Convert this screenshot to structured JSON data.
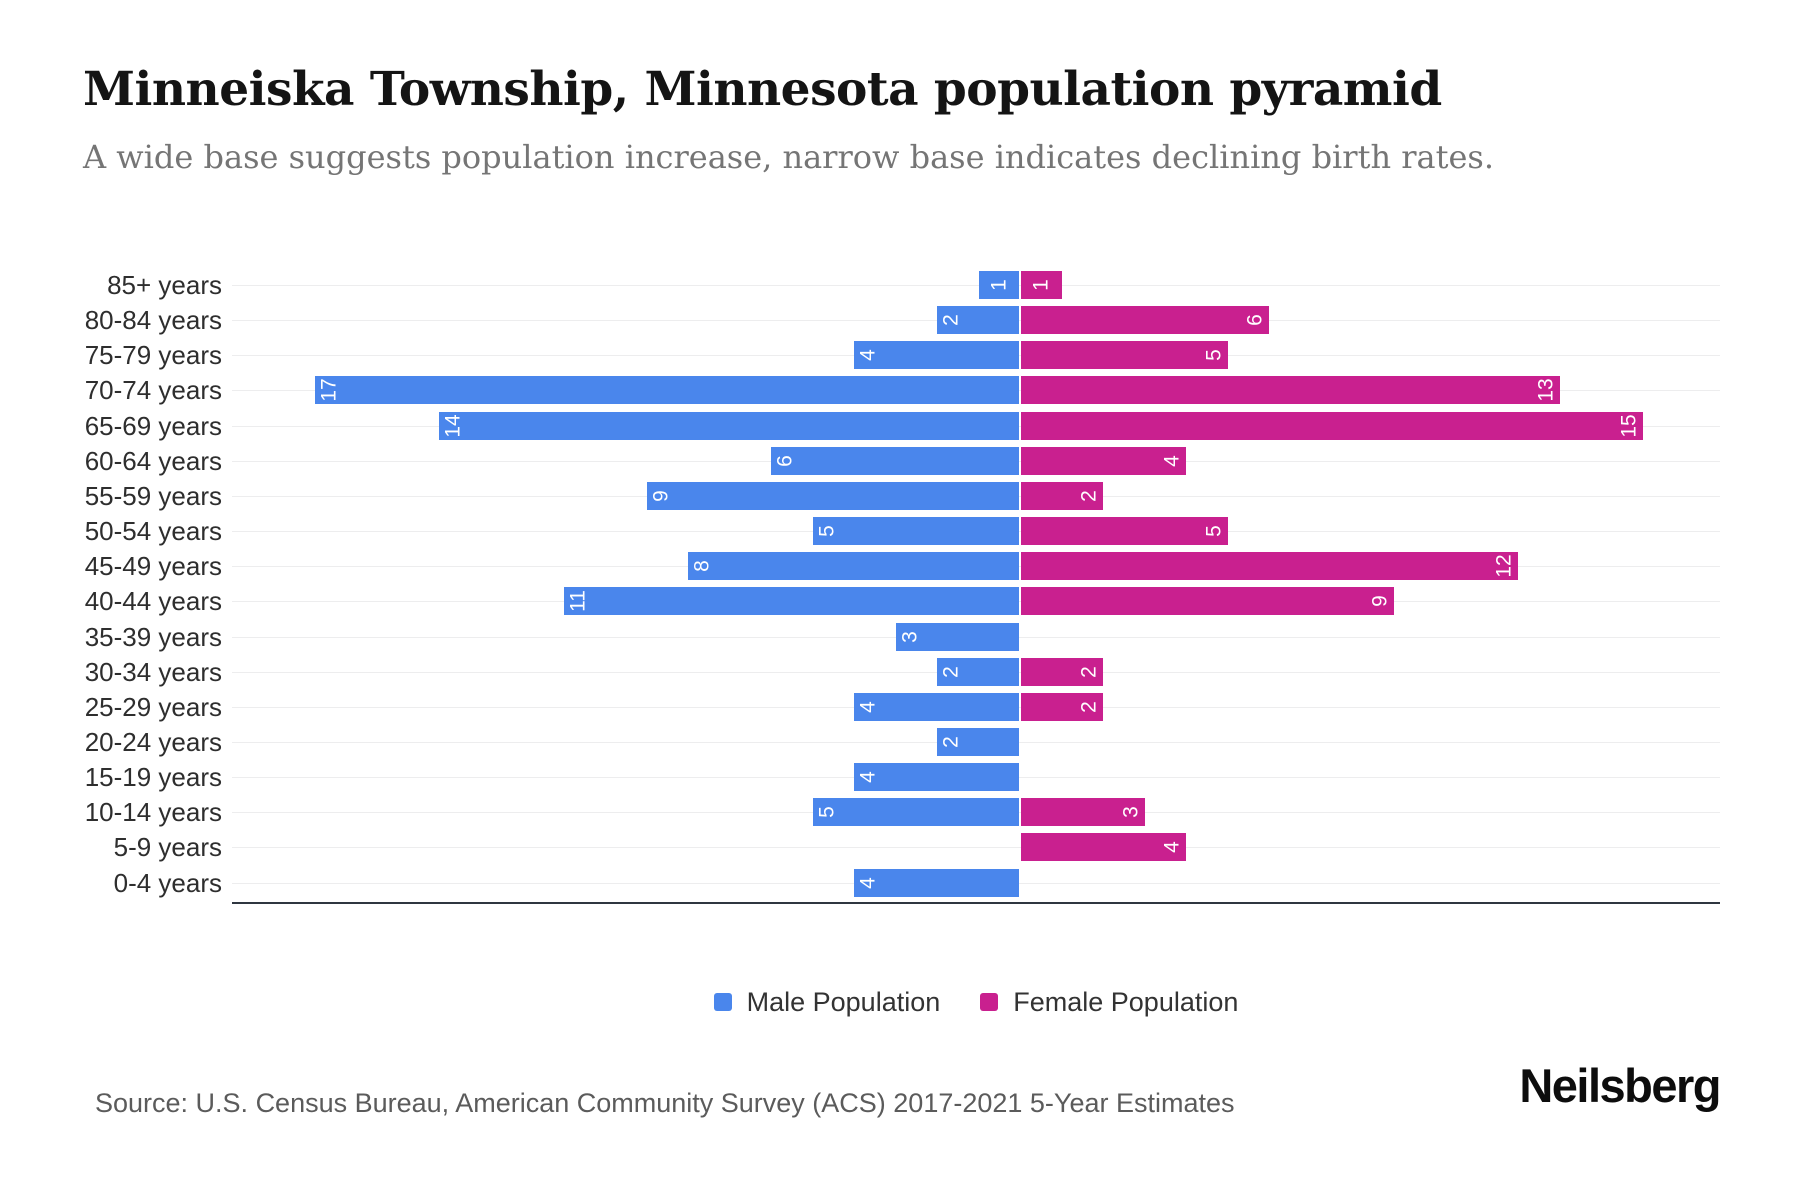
{
  "header": {
    "title": "Minneiska Township, Minnesota population pyramid",
    "subtitle": "A wide base suggests population increase, narrow base indicates declining birth rates."
  },
  "chart_data": {
    "type": "bar",
    "variant": "population-pyramid",
    "title": "Minneiska Township, Minnesota population pyramid",
    "categories": [
      "85+ years",
      "80-84 years",
      "75-79 years",
      "70-74 years",
      "65-69 years",
      "60-64 years",
      "55-59 years",
      "50-54 years",
      "45-49 years",
      "40-44 years",
      "35-39 years",
      "30-34 years",
      "25-29 years",
      "20-24 years",
      "15-19 years",
      "10-14 years",
      "5-9 years",
      "0-4 years"
    ],
    "series": [
      {
        "name": "Male Population",
        "side": "left",
        "color": "#4a86ec",
        "values": [
          1,
          2,
          4,
          17,
          14,
          6,
          9,
          5,
          8,
          11,
          3,
          2,
          4,
          2,
          4,
          5,
          0,
          4
        ]
      },
      {
        "name": "Female Population",
        "side": "right",
        "color": "#c9208f",
        "values": [
          1,
          6,
          5,
          13,
          15,
          4,
          2,
          5,
          12,
          9,
          0,
          2,
          2,
          0,
          0,
          3,
          4,
          0
        ]
      }
    ],
    "xlim": [
      -19,
      17
    ],
    "grid": true,
    "gridline_color": "#ededee",
    "axis_line_color": "#2f3640",
    "bar_label_color": "#ffffff",
    "legend_position": "bottom"
  },
  "legend": {
    "items": [
      {
        "label": "Male Population",
        "color": "#4a86ec"
      },
      {
        "label": "Female Population",
        "color": "#c9208f"
      }
    ]
  },
  "footer": {
    "source": "Source: U.S. Census Bureau, American Community Survey (ACS) 2017-2021 5-Year Estimates",
    "brand": "Neilsberg"
  }
}
